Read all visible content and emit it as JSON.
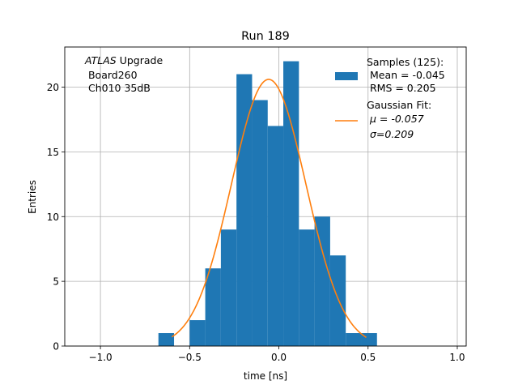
{
  "chart_data": {
    "type": "bar",
    "title": "Run 189",
    "xlabel": "time [ns]",
    "ylabel": "Entries",
    "xlim": [
      -1.2,
      1.05
    ],
    "ylim": [
      0,
      23.1
    ],
    "xticks": [
      -1.0,
      -0.5,
      0.0,
      0.5,
      1.0
    ],
    "xtick_labels": [
      "−1.0",
      "−0.5",
      "0.0",
      "0.5",
      "1.0"
    ],
    "yticks": [
      0,
      5,
      10,
      15,
      20
    ],
    "ytick_labels": [
      "0",
      "5",
      "10",
      "15",
      "20"
    ],
    "grid": true,
    "legend_position": "top-right",
    "annotation": {
      "italic": "ATLAS",
      "line1_rest": " Upgrade",
      "line2": " Board260",
      "line3": " Ch010 35dB"
    },
    "histogram": {
      "name": "Samples (125):\n Mean = -0.045\n RMS = 0.205",
      "legend_lines": [
        "Samples (125):",
        " Mean = -0.045",
        " RMS = 0.205"
      ],
      "color": "#1f77b4",
      "bin_edges": [
        -0.675,
        -0.5875,
        -0.5,
        -0.4125,
        -0.325,
        -0.2375,
        -0.15,
        -0.0625,
        0.025,
        0.1125,
        0.2,
        0.2875,
        0.375,
        0.4625,
        0.55
      ],
      "counts": [
        1,
        0,
        2,
        6,
        9,
        21,
        19,
        17,
        22,
        9,
        10,
        7,
        1,
        1
      ]
    },
    "fit": {
      "name": "Gaussian Fit:\n μ = -0.057\n σ=0.209",
      "legend_lines": [
        "Gaussian Fit:",
        " μ = -0.057",
        " σ=0.209"
      ],
      "color": "#ff7f0e",
      "mu": -0.057,
      "sigma": 0.209,
      "amplitude": 20.6,
      "x_range": [
        -0.6,
        0.49
      ]
    }
  }
}
